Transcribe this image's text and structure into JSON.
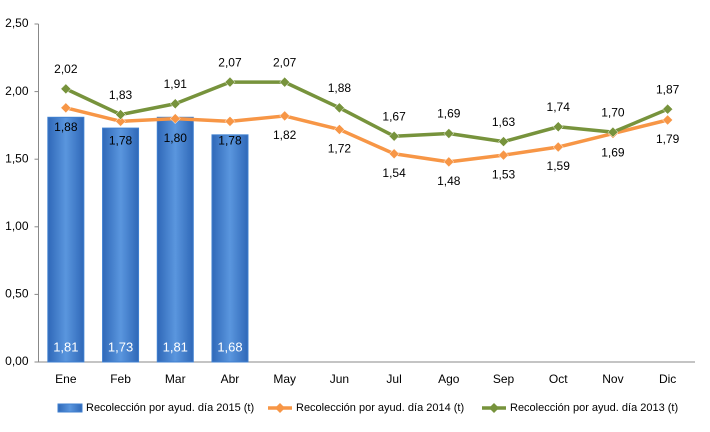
{
  "chart_data": {
    "type": "bar-line",
    "categories": [
      "Ene",
      "Feb",
      "Mar",
      "Abr",
      "May",
      "Jun",
      "Jul",
      "Ago",
      "Sep",
      "Oct",
      "Nov",
      "Dic"
    ],
    "series": [
      {
        "name": "Recolección por ayud. día 2015 (t)",
        "type": "bar",
        "color": "#3f7fcf",
        "values": [
          1.81,
          1.73,
          1.81,
          1.68,
          null,
          null,
          null,
          null,
          null,
          null,
          null,
          null
        ],
        "value_labels": [
          "1,81",
          "1,73",
          "1,81",
          "1,68",
          null,
          null,
          null,
          null,
          null,
          null,
          null,
          null
        ]
      },
      {
        "name": "Recolección por ayud. día 2014 (t)",
        "type": "line",
        "color": "#f79646",
        "values": [
          1.88,
          1.78,
          1.8,
          1.78,
          1.82,
          1.72,
          1.54,
          1.48,
          1.53,
          1.59,
          1.69,
          1.79
        ],
        "value_labels": [
          "1,88",
          "1,78",
          "1,80",
          "1,78",
          "1,82",
          "1,72",
          "1,54",
          "1,48",
          "1,53",
          "1,59",
          "1,69",
          "1,79"
        ]
      },
      {
        "name": "Recolección por ayud. día 2013 (t)",
        "type": "line",
        "color": "#77933c",
        "values": [
          2.02,
          1.83,
          1.91,
          2.07,
          2.07,
          1.88,
          1.67,
          1.69,
          1.63,
          1.74,
          1.7,
          1.87
        ],
        "value_labels": [
          "2,02",
          "1,83",
          "1,91",
          "2,07",
          "2,07",
          "1,88",
          "1,67",
          "1,69",
          "1,63",
          "1,74",
          "1,70",
          "1,87"
        ]
      }
    ],
    "ylim": [
      0,
      2.5
    ],
    "yticks": [
      {
        "value": 0,
        "label": "0,00"
      },
      {
        "value": 0.5,
        "label": "0,50"
      },
      {
        "value": 1,
        "label": "1,00"
      },
      {
        "value": 1.5,
        "label": "1,50"
      },
      {
        "value": 2,
        "label": "2,00"
      },
      {
        "value": 2.5,
        "label": "2,50"
      }
    ],
    "grid": false,
    "legend": "bottom"
  }
}
